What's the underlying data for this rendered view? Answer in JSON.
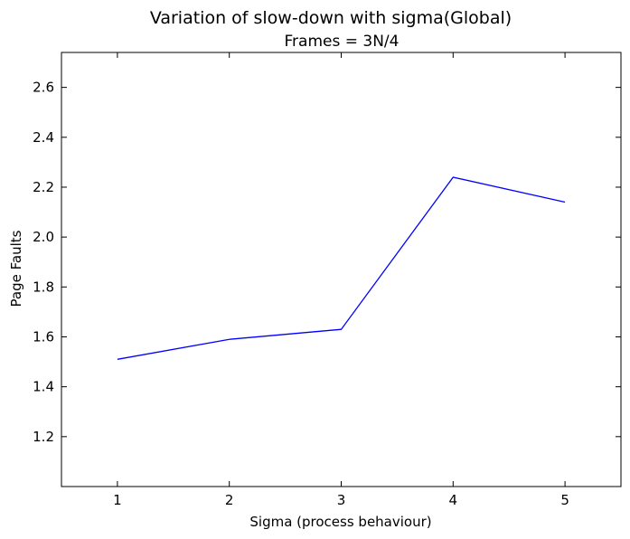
{
  "chart_data": {
    "type": "line",
    "title": "Variation of slow-down with sigma(Global)",
    "subtitle": "Frames = 3N/4",
    "xlabel": "Sigma (process behaviour)",
    "ylabel": "Page Faults",
    "x": [
      1,
      2,
      3,
      4,
      5
    ],
    "series": [
      {
        "values": [
          1.51,
          1.59,
          1.63,
          2.24,
          2.14
        ],
        "color": "#0000ff"
      }
    ],
    "xlim": [
      0.5,
      5.5
    ],
    "ylim": [
      1.0,
      2.74
    ],
    "xticks": [
      1,
      2,
      3,
      4,
      5
    ],
    "xtick_labels": [
      "1",
      "2",
      "3",
      "4",
      "5"
    ],
    "yticks": [
      1.2,
      1.4,
      1.6,
      1.8,
      2.0,
      2.2,
      2.4,
      2.6
    ],
    "ytick_labels": [
      "1.2",
      "1.4",
      "1.6",
      "1.8",
      "2.0",
      "2.2",
      "2.4",
      "2.6"
    ],
    "grid": false,
    "legend": false
  }
}
